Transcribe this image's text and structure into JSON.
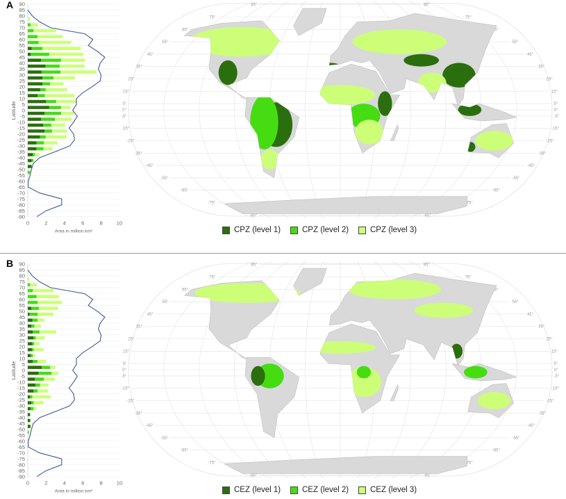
{
  "colors": {
    "level1": "#2b6e0e",
    "level2": "#45dd12",
    "level3": "#ccff77",
    "line": "#3d5a99",
    "land": "#d9d9d9",
    "grid": "#e2e2e2"
  },
  "map": {
    "graticule_lat_labels": [
      "85°",
      "75°",
      "65°",
      "55°",
      "45°",
      "35°",
      "25°",
      "15°",
      "5°",
      "0°",
      "-5°",
      "-15°",
      "-25°",
      "-35°",
      "-45°",
      "-55°",
      "-65°",
      "-75°",
      "-85°"
    ]
  },
  "panels": [
    {
      "label": "A",
      "legend": [
        "CPZ (level 1)",
        "CPZ (level 2)",
        "CPZ (level 3)"
      ]
    },
    {
      "label": "B",
      "legend": [
        "CEZ (level 1)",
        "CEZ (level 2)",
        "CEZ (level 3)"
      ]
    }
  ],
  "chart_data": [
    {
      "type": "bar",
      "orientation": "horizontal",
      "stacked": true,
      "panel": "A",
      "xlabel": "Area in million km²",
      "ylabel": "Latitude",
      "xlim": [
        0,
        10
      ],
      "ylim": [
        -90,
        90
      ],
      "xticks": [
        "0",
        "2",
        "4",
        "6",
        "8",
        "10"
      ],
      "yticks": [
        "90",
        "85",
        "80",
        "75",
        "70",
        "65",
        "60",
        "55",
        "50",
        "45",
        "40",
        "35",
        "30",
        "25",
        "20",
        "15",
        "10",
        "5",
        "0",
        "-5",
        "-10",
        "-15",
        "-20",
        "-25",
        "-30",
        "-35",
        "-40",
        "-45",
        "-50",
        "-55",
        "-60",
        "-65",
        "-70",
        "-75",
        "-80",
        "-85",
        "-90"
      ],
      "bins": [
        [
          75,
          80
        ],
        [
          70,
          75
        ],
        [
          65,
          70
        ],
        [
          60,
          65
        ],
        [
          55,
          60
        ],
        [
          50,
          55
        ],
        [
          45,
          50
        ],
        [
          40,
          45
        ],
        [
          35,
          40
        ],
        [
          30,
          35
        ],
        [
          25,
          30
        ],
        [
          20,
          25
        ],
        [
          15,
          20
        ],
        [
          10,
          15
        ],
        [
          5,
          10
        ],
        [
          0,
          5
        ],
        [
          -5,
          0
        ],
        [
          -10,
          -5
        ],
        [
          -15,
          -10
        ],
        [
          -20,
          -15
        ],
        [
          -25,
          -20
        ],
        [
          -30,
          -25
        ],
        [
          -35,
          -30
        ],
        [
          -40,
          -35
        ],
        [
          -45,
          -40
        ],
        [
          -50,
          -45
        ],
        [
          -55,
          -50
        ]
      ],
      "series": [
        {
          "name": "CPZ (level 1)",
          "values": [
            0,
            0,
            0,
            0,
            0,
            0.43,
            0.33,
            1.46,
            1.94,
            1.51,
            1.59,
            1.61,
            1.36,
            1.06,
            2.0,
            2.34,
            1.84,
            1.46,
            1.69,
            1.84,
            1.34,
            0.96,
            0.96,
            0.55,
            0.43,
            0.43,
            0
          ]
        },
        {
          "name": "CPZ (level 2)",
          "values": [
            0,
            0.3,
            0.63,
            1.06,
            1.18,
            1.16,
            2.01,
            2.17,
            1.54,
            2.07,
            1.21,
            0.83,
            0.6,
            0.8,
            1.1,
            1.29,
            1.81,
            1.51,
            0.88,
            0.8,
            0.62,
            0.8,
            0.75,
            0.21,
            0.2,
            0,
            0.25
          ]
        },
        {
          "name": "CPZ (level 3)",
          "values": [
            0.25,
            0.83,
            2.44,
            2.72,
            3.56,
            4.2,
            3.71,
            2.62,
            2.72,
            3.92,
            2.36,
            1.46,
            2.34,
            3.25,
            2.19,
            1.03,
            1.39,
            1.82,
            1.51,
            1.64,
            2.27,
            1.46,
            0.99,
            0.5,
            0,
            0,
            0
          ]
        }
      ],
      "line": {
        "lat": [
          85,
          80,
          75,
          70,
          65,
          60,
          55,
          50,
          45,
          40,
          35,
          30,
          25,
          20,
          15,
          10,
          5,
          0,
          -5,
          -10,
          -15,
          -20,
          -25,
          -30,
          -35,
          -40,
          -45,
          -50,
          -55,
          -60,
          -65,
          -70,
          -75,
          -80,
          -85,
          -90
        ],
        "values": [
          0,
          0.5,
          1.3,
          2.5,
          6.2,
          7.1,
          6.6,
          7.6,
          8.4,
          7.9,
          7.7,
          8.0,
          7.9,
          7.0,
          6.0,
          5.3,
          5.3,
          4.9,
          5.4,
          5.0,
          4.5,
          5.0,
          5.1,
          4.6,
          3.0,
          1.3,
          0.6,
          0.4,
          0.25,
          0.05,
          0.05,
          1.3,
          3.7,
          3.7,
          2.0,
          1.0
        ]
      }
    },
    {
      "type": "bar",
      "orientation": "horizontal",
      "stacked": true,
      "panel": "B",
      "xlabel": "Area in million km²",
      "ylabel": "Latitude",
      "xlim": [
        0,
        10
      ],
      "ylim": [
        -90,
        90
      ],
      "xticks": [
        "0",
        "2",
        "4",
        "6",
        "8",
        "10"
      ],
      "yticks": [
        "90",
        "85",
        "80",
        "75",
        "70",
        "65",
        "60",
        "55",
        "50",
        "45",
        "40",
        "35",
        "30",
        "25",
        "20",
        "15",
        "10",
        "5",
        "0",
        "-5",
        "-10",
        "-15",
        "-20",
        "-25",
        "-30",
        "-35",
        "-40",
        "-45",
        "-50",
        "-55",
        "-60",
        "-65",
        "-70",
        "-75",
        "-80",
        "-85",
        "-90"
      ],
      "bins": [
        [
          75,
          80
        ],
        [
          70,
          75
        ],
        [
          65,
          70
        ],
        [
          60,
          65
        ],
        [
          55,
          60
        ],
        [
          50,
          55
        ],
        [
          45,
          50
        ],
        [
          40,
          45
        ],
        [
          35,
          40
        ],
        [
          30,
          35
        ],
        [
          25,
          30
        ],
        [
          20,
          25
        ],
        [
          15,
          20
        ],
        [
          10,
          15
        ],
        [
          5,
          10
        ],
        [
          0,
          5
        ],
        [
          -5,
          0
        ],
        [
          -10,
          -5
        ],
        [
          -15,
          -10
        ],
        [
          -20,
          -15
        ],
        [
          -25,
          -20
        ],
        [
          -30,
          -25
        ],
        [
          -35,
          -30
        ],
        [
          -40,
          -35
        ],
        [
          -45,
          -40
        ],
        [
          -50,
          -45
        ],
        [
          -55,
          -50
        ]
      ],
      "series": [
        {
          "name": "CEZ (level 1)",
          "values": [
            0,
            0,
            0,
            0,
            0,
            0.38,
            0.2,
            0.5,
            0.38,
            0.55,
            0.63,
            0.5,
            0.45,
            0.3,
            0.55,
            1.51,
            1.18,
            0.76,
            0.83,
            0.63,
            0.25,
            0.38,
            0.3,
            0.25,
            0.25,
            0.3,
            0
          ]
        },
        {
          "name": "CEZ (level 2)",
          "values": [
            0,
            0.25,
            0.55,
            0.96,
            1.06,
            0.83,
            0.86,
            0.56,
            0.35,
            0.73,
            0.25,
            0.18,
            0.2,
            0.23,
            0.51,
            0.93,
            1.41,
            1.0,
            0.51,
            0.43,
            0.25,
            0.27,
            0.33,
            0,
            0.05,
            0,
            0.13
          ]
        },
        {
          "name": "CEZ (level 3)",
          "values": [
            0.15,
            0.75,
            2.27,
            2.44,
            2.67,
            2.11,
            1.76,
            0.75,
            0.71,
            1.82,
            0.98,
            0.6,
            1.09,
            0.28,
            0.94,
            0.58,
            0.76,
            1.21,
            0.93,
            1.16,
            2.02,
            1.06,
            0.3,
            0,
            0,
            0,
            0
          ]
        }
      ],
      "line": {
        "lat": [
          85,
          80,
          75,
          70,
          65,
          60,
          55,
          50,
          45,
          40,
          35,
          30,
          25,
          20,
          15,
          10,
          5,
          0,
          -5,
          -10,
          -15,
          -20,
          -25,
          -30,
          -35,
          -40,
          -45,
          -50,
          -55,
          -60,
          -65,
          -70,
          -75,
          -80,
          -85,
          -90
        ],
        "values": [
          0,
          0.5,
          1.3,
          2.5,
          6.2,
          7.1,
          6.6,
          7.6,
          8.4,
          7.9,
          7.7,
          8.0,
          7.9,
          7.0,
          6.0,
          5.3,
          5.3,
          4.9,
          5.4,
          5.0,
          4.5,
          5.0,
          5.1,
          4.6,
          3.0,
          1.3,
          0.6,
          0.4,
          0.25,
          0.05,
          0.05,
          1.3,
          3.7,
          3.7,
          2.0,
          1.0
        ]
      }
    }
  ]
}
